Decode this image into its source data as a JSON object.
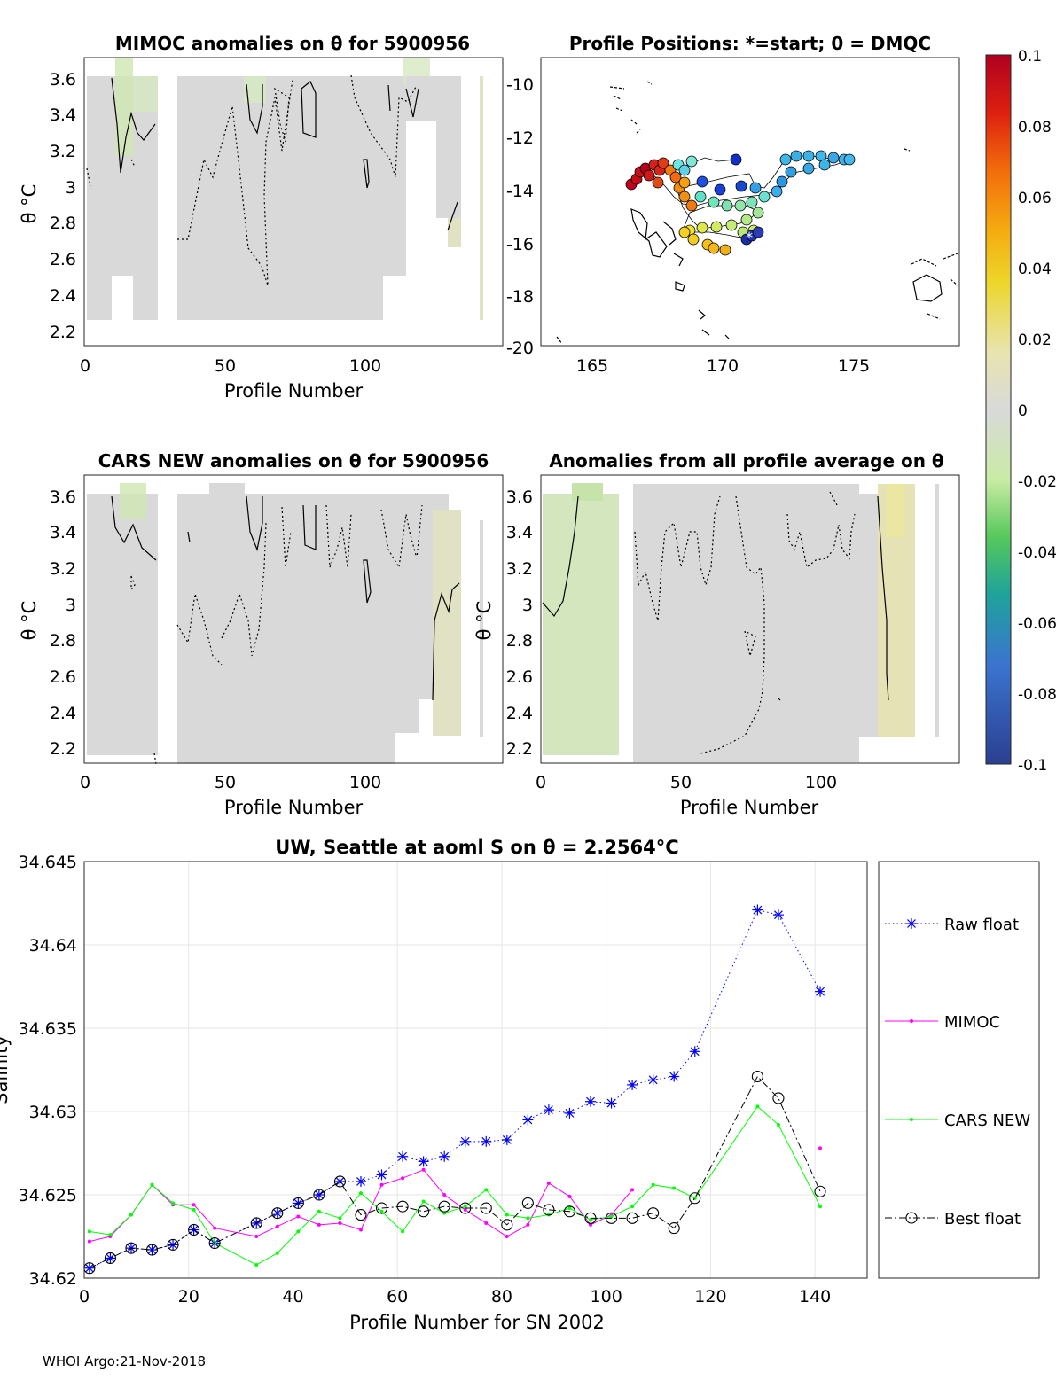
{
  "footer": "WHOI Argo:21-Nov-2018",
  "panels": {
    "mimoc": {
      "title": "MIMOC anomalies on θ  for 5900956",
      "ylabel": "θ °C",
      "xlabel": "Profile Number",
      "xticks": [
        "0",
        "50",
        "100"
      ],
      "yticks": [
        "2.2",
        "2.4",
        "2.6",
        "2.8",
        "3",
        "3.2",
        "3.4",
        "3.6"
      ]
    },
    "positions": {
      "title": "Profile Positions: *=start; 0 = DMQC",
      "xticks": [
        "165",
        "170",
        "175"
      ],
      "yticks": [
        "-10",
        "-12",
        "-14",
        "-16",
        "-18",
        "-20"
      ]
    },
    "cars": {
      "title": "CARS NEW anomalies on θ for 5900956",
      "ylabel": "θ °C",
      "xlabel": "Profile Number",
      "xticks": [
        "0",
        "50",
        "100"
      ],
      "yticks": [
        "2.2",
        "2.4",
        "2.6",
        "2.8",
        "3",
        "3.2",
        "3.4",
        "3.6"
      ]
    },
    "avg": {
      "title": "Anomalies from all profile average on θ",
      "ylabel": "θ °C",
      "xlabel": "Profile Number",
      "xticks": [
        "0",
        "50",
        "100"
      ],
      "yticks": [
        "2.2",
        "2.4",
        "2.6",
        "2.8",
        "3",
        "3.2",
        "3.4",
        "3.6"
      ]
    },
    "colorbar": {
      "ticks": [
        "0.1",
        "0.08",
        "0.06",
        "0.04",
        "0.02",
        "0",
        "-0.02",
        "-0.04",
        "-0.06",
        "-0.08",
        "-0.1"
      ]
    }
  },
  "chart_data": {
    "type": "line",
    "title": "UW, Seattle at aoml S on θ = 2.2564°C",
    "xlabel": "Profile Number for SN 2002",
    "ylabel": "Salinity",
    "xlim": [
      0,
      150
    ],
    "ylim": [
      34.62,
      34.645
    ],
    "xticks": [
      "0",
      "20",
      "40",
      "60",
      "80",
      "100",
      "120",
      "140"
    ],
    "yticks": [
      "34.62",
      "34.625",
      "34.63",
      "34.635",
      "34.64",
      "34.645"
    ],
    "grid": true,
    "legend_position": "right, outside",
    "series": [
      {
        "name": "Raw float",
        "color": "#0000ff",
        "marker": "asterisk",
        "x": [
          1,
          5,
          9,
          13,
          17,
          21,
          25,
          33,
          37,
          41,
          45,
          49,
          53,
          57,
          61,
          65,
          69,
          73,
          77,
          81,
          85,
          89,
          93,
          97,
          101,
          105,
          109,
          113,
          117,
          129,
          133,
          141
        ],
        "values": [
          34.6206,
          34.6212,
          34.6218,
          34.6217,
          34.622,
          34.6229,
          34.6221,
          34.6233,
          34.6239,
          34.6245,
          34.625,
          34.6258,
          34.6258,
          34.6262,
          34.6273,
          34.627,
          34.6273,
          34.6282,
          34.6282,
          34.6283,
          34.6295,
          34.6301,
          34.6299,
          34.6306,
          34.6305,
          34.6316,
          34.6319,
          34.6321,
          34.6336,
          34.6421,
          34.6418,
          34.6372
        ]
      },
      {
        "name": "MIMOC",
        "color": "#ff00ff",
        "marker": "dot",
        "x": [
          1,
          5,
          9,
          13,
          17,
          21,
          25,
          33,
          37,
          41,
          45,
          49,
          53,
          57,
          61,
          65,
          69,
          73,
          77,
          81,
          85,
          89,
          93,
          97,
          101,
          105,
          141
        ],
        "values": [
          34.6222,
          34.6225,
          34.6238,
          34.6256,
          34.6244,
          34.6244,
          34.623,
          34.6225,
          34.6231,
          34.6237,
          34.6232,
          34.6233,
          34.6229,
          34.6256,
          34.626,
          34.6265,
          34.625,
          34.6241,
          34.6233,
          34.6225,
          34.6232,
          34.6257,
          34.6249,
          34.6232,
          34.6238,
          34.6253,
          34.6278
        ],
        "breaks_after_x": 105
      },
      {
        "name": "CARS NEW",
        "color": "#00ff00",
        "marker": "dot",
        "x": [
          1,
          5,
          9,
          13,
          17,
          21,
          25,
          33,
          37,
          41,
          45,
          49,
          53,
          57,
          61,
          65,
          69,
          73,
          77,
          81,
          85,
          89,
          93,
          97,
          101,
          105,
          109,
          113,
          117,
          129,
          133,
          141
        ],
        "values": [
          34.6228,
          34.6226,
          34.6238,
          34.6256,
          34.6245,
          34.6241,
          34.6221,
          34.6208,
          34.6215,
          34.6228,
          34.624,
          34.6236,
          34.6251,
          34.624,
          34.6228,
          34.6246,
          34.6239,
          34.6243,
          34.6253,
          34.6238,
          34.6236,
          34.6238,
          34.6242,
          34.6235,
          34.6237,
          34.6243,
          34.6256,
          34.6254,
          34.6248,
          34.6303,
          34.6292,
          34.6243
        ]
      },
      {
        "name": "Best float",
        "color": "#000000",
        "marker": "circle",
        "x": [
          1,
          5,
          9,
          13,
          17,
          21,
          25,
          33,
          37,
          41,
          45,
          49,
          53,
          57,
          61,
          65,
          69,
          73,
          77,
          81,
          85,
          89,
          93,
          97,
          101,
          105,
          109,
          113,
          117,
          129,
          133,
          141
        ],
        "values": [
          34.6206,
          34.6212,
          34.6218,
          34.6217,
          34.622,
          34.6229,
          34.6221,
          34.6233,
          34.6239,
          34.6245,
          34.625,
          34.6258,
          34.6238,
          34.6242,
          34.6243,
          34.624,
          34.6243,
          34.6242,
          34.6242,
          34.6232,
          34.6245,
          34.6241,
          34.624,
          34.6236,
          34.6236,
          34.6236,
          34.6239,
          34.623,
          34.6248,
          34.6321,
          34.6308,
          34.6252
        ]
      }
    ]
  }
}
